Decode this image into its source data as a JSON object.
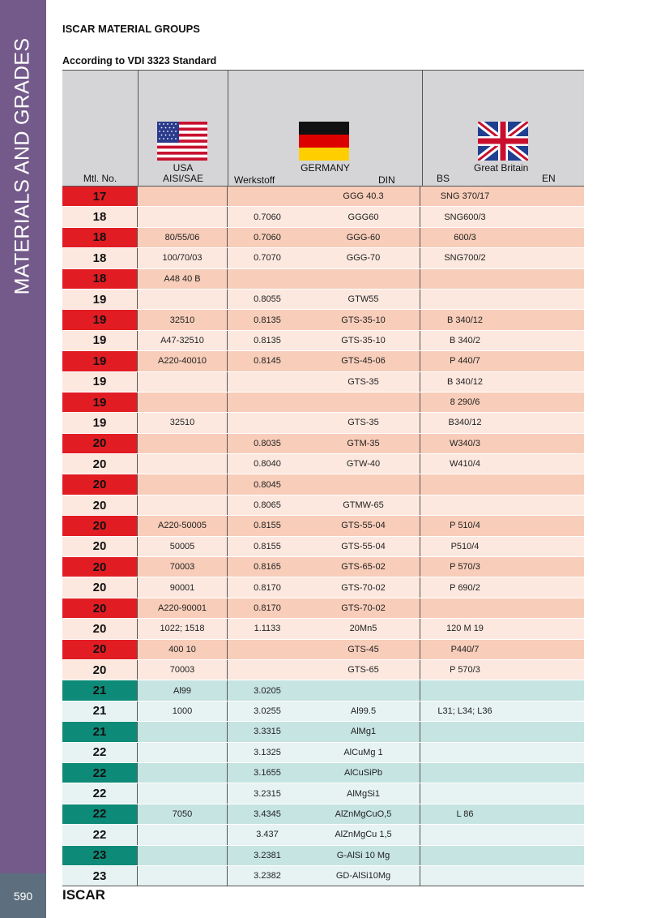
{
  "sidebar": {
    "title": "MATERIALS AND GRADES"
  },
  "header": {
    "title": "ISCAR MATERIAL GROUPS",
    "subtitle": "According to VDI 3323 Standard"
  },
  "footer": {
    "page_number": "590",
    "brand": "ISCAR"
  },
  "table": {
    "headers": {
      "mtl_no": "Mtl. No.",
      "usa_country": "USA",
      "usa_std": "AISI/SAE",
      "germany_country": "GERMANY",
      "werkstoff": "Werkstoff",
      "din": "DIN",
      "gb_country": "Great Britain",
      "bs": "BS",
      "en": "EN"
    },
    "flags": {
      "usa": "usa-flag-icon",
      "germany": "germany-flag-icon",
      "gb": "great-britain-flag-icon"
    },
    "colors": {
      "red_marker": "#e21c23",
      "red_dark": "#f8cdb9",
      "red_light": "#fde8df",
      "teal_marker": "#0e8a78",
      "teal_dark": "#c6e4e2",
      "teal_light": "#e6f3f2",
      "header_bg": "#d5d5d7",
      "sidebar_bg": "#735a8a"
    },
    "rows": [
      {
        "no": "17",
        "usa": "",
        "werkstoff": "",
        "din": "GGG 40.3",
        "bs": "SNG 370/17",
        "en": "",
        "group": "red"
      },
      {
        "no": "18",
        "usa": "",
        "werkstoff": "0.7060",
        "din": "GGG60",
        "bs": "SNG600/3",
        "en": "",
        "group": "red"
      },
      {
        "no": "18",
        "usa": "80/55/06",
        "werkstoff": "0.7060",
        "din": "GGG-60",
        "bs": "600/3",
        "en": "",
        "group": "red"
      },
      {
        "no": "18",
        "usa": "100/70/03",
        "werkstoff": "0.7070",
        "din": "GGG-70",
        "bs": "SNG700/2",
        "en": "",
        "group": "red"
      },
      {
        "no": "18",
        "usa": "A48 40 B",
        "werkstoff": "",
        "din": "",
        "bs": "",
        "en": "",
        "group": "red"
      },
      {
        "no": "19",
        "usa": "",
        "werkstoff": "0.8055",
        "din": "GTW55",
        "bs": "",
        "en": "",
        "group": "red"
      },
      {
        "no": "19",
        "usa": "32510",
        "werkstoff": "0.8135",
        "din": "GTS-35-10",
        "bs": "B 340/12",
        "en": "",
        "group": "red"
      },
      {
        "no": "19",
        "usa": "A47-32510",
        "werkstoff": "0.8135",
        "din": "GTS-35-10",
        "bs": "B 340/2",
        "en": "",
        "group": "red"
      },
      {
        "no": "19",
        "usa": "A220-40010",
        "werkstoff": "0.8145",
        "din": "GTS-45-06",
        "bs": "P 440/7",
        "en": "",
        "group": "red"
      },
      {
        "no": "19",
        "usa": "",
        "werkstoff": "",
        "din": "GTS-35",
        "bs": "B 340/12",
        "en": "",
        "group": "red"
      },
      {
        "no": "19",
        "usa": "",
        "werkstoff": "",
        "din": "",
        "bs": "8 290/6",
        "en": "",
        "group": "red"
      },
      {
        "no": "19",
        "usa": "32510",
        "werkstoff": "",
        "din": "GTS-35",
        "bs": "B340/12",
        "en": "",
        "group": "red"
      },
      {
        "no": "20",
        "usa": "",
        "werkstoff": "0.8035",
        "din": "GTM-35",
        "bs": "W340/3",
        "en": "",
        "group": "red"
      },
      {
        "no": "20",
        "usa": "",
        "werkstoff": "0.8040",
        "din": "GTW-40",
        "bs": "W410/4",
        "en": "",
        "group": "red"
      },
      {
        "no": "20",
        "usa": "",
        "werkstoff": "0.8045",
        "din": "",
        "bs": "",
        "en": "",
        "group": "red"
      },
      {
        "no": "20",
        "usa": "",
        "werkstoff": "0.8065",
        "din": "GTMW-65",
        "bs": "",
        "en": "",
        "group": "red"
      },
      {
        "no": "20",
        "usa": "A220-50005",
        "werkstoff": "0.8155",
        "din": "GTS-55-04",
        "bs": "P 510/4",
        "en": "",
        "group": "red"
      },
      {
        "no": "20",
        "usa": "50005",
        "werkstoff": "0.8155",
        "din": "GTS-55-04",
        "bs": "P510/4",
        "en": "",
        "group": "red"
      },
      {
        "no": "20",
        "usa": "70003",
        "werkstoff": "0.8165",
        "din": "GTS-65-02",
        "bs": "P 570/3",
        "en": "",
        "group": "red"
      },
      {
        "no": "20",
        "usa": "90001",
        "werkstoff": "0.8170",
        "din": "GTS-70-02",
        "bs": "P 690/2",
        "en": "",
        "group": "red"
      },
      {
        "no": "20",
        "usa": "A220-90001",
        "werkstoff": "0.8170",
        "din": "GTS-70-02",
        "bs": "",
        "en": "",
        "group": "red"
      },
      {
        "no": "20",
        "usa": "1022; 1518",
        "werkstoff": "1.1133",
        "din": "20Mn5",
        "bs": "120 M 19",
        "en": "",
        "group": "red"
      },
      {
        "no": "20",
        "usa": "400 10",
        "werkstoff": "",
        "din": "GTS-45",
        "bs": "P440/7",
        "en": "",
        "group": "red"
      },
      {
        "no": "20",
        "usa": "70003",
        "werkstoff": "",
        "din": "GTS-65",
        "bs": "P 570/3",
        "en": "",
        "group": "red"
      },
      {
        "no": "21",
        "usa": "Al99",
        "werkstoff": "3.0205",
        "din": "",
        "bs": "",
        "en": "",
        "group": "teal"
      },
      {
        "no": "21",
        "usa": "1000",
        "werkstoff": "3.0255",
        "din": "Al99.5",
        "bs": "L31; L34; L36",
        "en": "",
        "group": "teal"
      },
      {
        "no": "21",
        "usa": "",
        "werkstoff": "3.3315",
        "din": "AlMg1",
        "bs": "",
        "en": "",
        "group": "teal"
      },
      {
        "no": "22",
        "usa": "",
        "werkstoff": "3.1325",
        "din": "AlCuMg 1",
        "bs": "",
        "en": "",
        "group": "teal"
      },
      {
        "no": "22",
        "usa": "",
        "werkstoff": "3.1655",
        "din": "AlCuSiPb",
        "bs": "",
        "en": "",
        "group": "teal"
      },
      {
        "no": "22",
        "usa": "",
        "werkstoff": "3.2315",
        "din": "AlMgSi1",
        "bs": "",
        "en": "",
        "group": "teal"
      },
      {
        "no": "22",
        "usa": "7050",
        "werkstoff": "3.4345",
        "din": "AlZnMgCuO,5",
        "bs": "L 86",
        "en": "",
        "group": "teal"
      },
      {
        "no": "22",
        "usa": "",
        "werkstoff": "3.437",
        "din": "AlZnMgCu 1,5",
        "bs": "",
        "en": "",
        "group": "teal"
      },
      {
        "no": "23",
        "usa": "",
        "werkstoff": "3.2381",
        "din": "G-AlSi 10 Mg",
        "bs": "",
        "en": "",
        "group": "teal"
      },
      {
        "no": "23",
        "usa": "",
        "werkstoff": "3.2382",
        "din": "GD-AlSi10Mg",
        "bs": "",
        "en": "",
        "group": "teal"
      }
    ]
  }
}
